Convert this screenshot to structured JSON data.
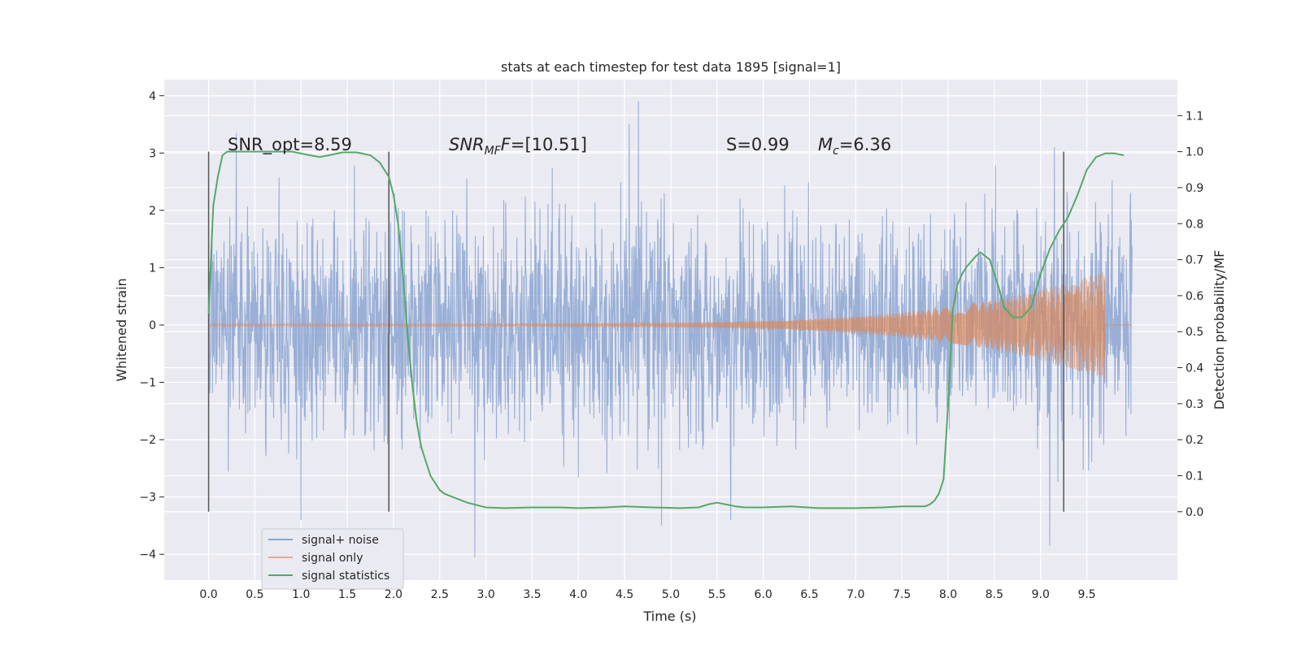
{
  "chart_data": {
    "type": "line",
    "title": "stats at each timestep for test data 1895 [signal=1]",
    "xlabel": "Time (s)",
    "ylabel_left": "Whitened strain",
    "ylabel_right": "Detection probability/MF",
    "xlim": [
      -0.48,
      10.48
    ],
    "ylim_left": [
      -4.45,
      4.28
    ],
    "ylim_right": [
      -0.19,
      1.2
    ],
    "x_ticks": [
      "0.0",
      "0.5",
      "1.0",
      "1.5",
      "2.0",
      "2.5",
      "3.0",
      "3.5",
      "4.0",
      "4.5",
      "5.0",
      "5.5",
      "6.0",
      "6.5",
      "7.0",
      "7.5",
      "8.0",
      "8.5",
      "9.0",
      "9.5"
    ],
    "y_left_ticks": [
      "4",
      "3",
      "2",
      "1",
      "0",
      "−1",
      "−2",
      "−3",
      "−4"
    ],
    "y_right_ticks": [
      "1.1",
      "1.0",
      "0.9",
      "0.8",
      "0.7",
      "0.6",
      "0.5",
      "0.4",
      "0.3",
      "0.2",
      "0.1",
      "0.0"
    ],
    "grid": true,
    "legend_position": "lower-left",
    "annotations": {
      "snr_opt": "SNR_opt=8.59",
      "snr_mf_prefix": "SNR",
      "snr_mf_sub": "MF",
      "snr_mf_suffix": "=[10.51]",
      "s_value": "S=0.99",
      "mc_prefix": "M",
      "mc_sub": "c",
      "mc_suffix": "=6.36"
    },
    "vertical_lines_x": [
      0.0,
      1.95,
      9.25
    ],
    "series": [
      {
        "name": "signal+ noise",
        "color": "#8ba4d1",
        "envelope": {
          "x_range": [
            0.0,
            9.99
          ],
          "typical_abs": 1.25,
          "max_abs": 2.8,
          "peaks": [
            {
              "x": 0.3,
              "y": 3.35
            },
            {
              "x": 1.0,
              "y": -3.4
            },
            {
              "x": 2.88,
              "y": -4.05
            },
            {
              "x": 4.65,
              "y": 3.9
            },
            {
              "x": 4.55,
              "y": 3.5
            },
            {
              "x": 5.65,
              "y": -3.4
            },
            {
              "x": 9.1,
              "y": -3.85
            },
            {
              "x": 9.15,
              "y": 3.1
            },
            {
              "x": 4.9,
              "y": -3.5
            }
          ]
        }
      },
      {
        "name": "signal only",
        "color": "#dd8452",
        "chirp": {
          "start": 0.0,
          "end": 9.7,
          "amp_start": 0.02,
          "amp_peak": 0.95,
          "peak_x": 9.7
        }
      },
      {
        "name": "signal statistics",
        "color": "#55a868",
        "axis": "right",
        "x": [
          0.0,
          0.05,
          0.1,
          0.15,
          0.2,
          0.3,
          0.5,
          0.7,
          0.9,
          1.1,
          1.2,
          1.3,
          1.45,
          1.6,
          1.75,
          1.85,
          1.95,
          2.0,
          2.05,
          2.1,
          2.15,
          2.2,
          2.25,
          2.3,
          2.35,
          2.4,
          2.45,
          2.5,
          2.55,
          2.6,
          2.8,
          3.0,
          3.2,
          3.5,
          3.8,
          4.0,
          4.3,
          4.5,
          4.8,
          5.1,
          5.3,
          5.4,
          5.5,
          5.6,
          5.7,
          5.8,
          6.0,
          6.3,
          6.6,
          7.0,
          7.3,
          7.5,
          7.7,
          7.75,
          7.8,
          7.85,
          7.9,
          7.95,
          8.0,
          8.05,
          8.1,
          8.15,
          8.2,
          8.3,
          8.35,
          8.45,
          8.55,
          8.6,
          8.7,
          8.8,
          8.9,
          9.0,
          9.1,
          9.2,
          9.3,
          9.4,
          9.5,
          9.6,
          9.7,
          9.8,
          9.9
        ],
        "values": [
          0.55,
          0.85,
          0.93,
          0.99,
          1.0,
          1.0,
          1.0,
          1.0,
          1.0,
          0.99,
          0.985,
          0.99,
          0.998,
          0.998,
          0.99,
          0.97,
          0.93,
          0.88,
          0.8,
          0.66,
          0.5,
          0.36,
          0.25,
          0.18,
          0.14,
          0.1,
          0.08,
          0.06,
          0.05,
          0.045,
          0.025,
          0.012,
          0.01,
          0.012,
          0.012,
          0.01,
          0.012,
          0.015,
          0.012,
          0.01,
          0.012,
          0.02,
          0.025,
          0.02,
          0.015,
          0.012,
          0.012,
          0.015,
          0.01,
          0.01,
          0.012,
          0.015,
          0.015,
          0.015,
          0.02,
          0.03,
          0.05,
          0.09,
          0.3,
          0.56,
          0.63,
          0.66,
          0.68,
          0.71,
          0.72,
          0.7,
          0.62,
          0.57,
          0.54,
          0.54,
          0.57,
          0.66,
          0.73,
          0.78,
          0.82,
          0.88,
          0.95,
          0.985,
          0.995,
          0.995,
          0.99
        ]
      }
    ]
  }
}
